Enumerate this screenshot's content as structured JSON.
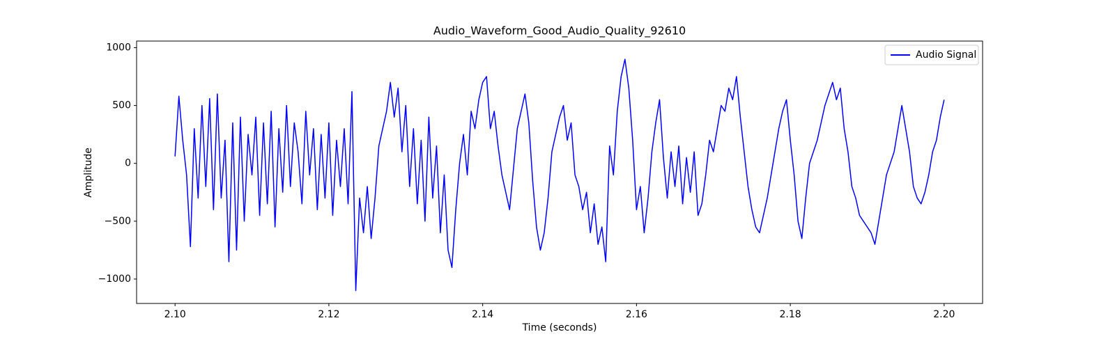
{
  "chart_data": {
    "type": "line",
    "title": "Audio_Waveform_Good_Audio_Quality_92610",
    "x_label": "Time (seconds)",
    "y_label": "Amplitude",
    "legend": "upper right",
    "x": [
      2.1,
      2.1005,
      2.101,
      2.1015,
      2.102,
      2.1025,
      2.103,
      2.1035,
      2.104,
      2.1045,
      2.105,
      2.1055,
      2.106,
      2.1065,
      2.107,
      2.1075,
      2.108,
      2.1085,
      2.109,
      2.1095,
      2.11,
      2.1105,
      2.111,
      2.1115,
      2.112,
      2.1125,
      2.113,
      2.1135,
      2.114,
      2.1145,
      2.115,
      2.1155,
      2.116,
      2.1165,
      2.117,
      2.1175,
      2.118,
      2.1185,
      2.119,
      2.1195,
      2.12,
      2.1205,
      2.121,
      2.1215,
      2.122,
      2.1225,
      2.123,
      2.1235,
      2.124,
      2.1245,
      2.125,
      2.1255,
      2.126,
      2.1265,
      2.127,
      2.1275,
      2.128,
      2.1285,
      2.129,
      2.1295,
      2.13,
      2.1305,
      2.131,
      2.1315,
      2.132,
      2.1325,
      2.133,
      2.1335,
      2.134,
      2.1345,
      2.135,
      2.1355,
      2.136,
      2.1365,
      2.137,
      2.1375,
      2.138,
      2.1385,
      2.139,
      2.1395,
      2.14,
      2.1405,
      2.141,
      2.1415,
      2.142,
      2.1425,
      2.143,
      2.1435,
      2.144,
      2.1445,
      2.145,
      2.1455,
      2.146,
      2.1465,
      2.147,
      2.1475,
      2.148,
      2.1485,
      2.149,
      2.1495,
      2.15,
      2.1505,
      2.151,
      2.1515,
      2.152,
      2.1525,
      2.153,
      2.1535,
      2.154,
      2.1545,
      2.155,
      2.1555,
      2.156,
      2.1565,
      2.157,
      2.1575,
      2.158,
      2.1585,
      2.159,
      2.1595,
      2.16,
      2.1605,
      2.161,
      2.1615,
      2.162,
      2.1625,
      2.163,
      2.1635,
      2.164,
      2.1645,
      2.165,
      2.1655,
      2.166,
      2.1665,
      2.167,
      2.1675,
      2.168,
      2.1685,
      2.169,
      2.1695,
      2.17,
      2.1705,
      2.171,
      2.1715,
      2.172,
      2.1725,
      2.173,
      2.1735,
      2.174,
      2.1745,
      2.175,
      2.1755,
      2.176,
      2.1765,
      2.177,
      2.1775,
      2.178,
      2.1785,
      2.179,
      2.1795,
      2.18,
      2.1805,
      2.181,
      2.1815,
      2.182,
      2.1825,
      2.183,
      2.1835,
      2.184,
      2.1845,
      2.185,
      2.1855,
      2.186,
      2.1865,
      2.187,
      2.1875,
      2.188,
      2.1885,
      2.189,
      2.1895,
      2.19,
      2.1905,
      2.191,
      2.1915,
      2.192,
      2.1925,
      2.193,
      2.1935,
      2.194,
      2.1945,
      2.195,
      2.1955,
      2.196,
      2.1965,
      2.197,
      2.1975,
      2.198,
      2.1985,
      2.199,
      2.1995,
      2.2
    ],
    "series": [
      {
        "name": "Audio Signal",
        "color": "#0000ff",
        "values": [
          60,
          580,
          200,
          -100,
          -720,
          300,
          -300,
          500,
          -200,
          560,
          -400,
          600,
          -300,
          200,
          -850,
          350,
          -750,
          400,
          -500,
          250,
          -100,
          400,
          -450,
          350,
          -350,
          450,
          -550,
          300,
          -250,
          500,
          -200,
          350,
          100,
          -350,
          450,
          -100,
          300,
          -400,
          250,
          -300,
          350,
          -450,
          200,
          -200,
          300,
          -350,
          620,
          -1100,
          -300,
          -600,
          -200,
          -650,
          -300,
          150,
          300,
          450,
          700,
          400,
          650,
          100,
          500,
          -200,
          300,
          -350,
          200,
          -500,
          400,
          -300,
          150,
          -600,
          -100,
          -750,
          -900,
          -400,
          0,
          250,
          -100,
          450,
          300,
          550,
          700,
          750,
          300,
          450,
          150,
          -100,
          -250,
          -400,
          -50,
          300,
          450,
          600,
          350,
          -150,
          -550,
          -750,
          -600,
          -300,
          100,
          250,
          400,
          500,
          200,
          350,
          -100,
          -200,
          -400,
          -250,
          -600,
          -350,
          -700,
          -550,
          -850,
          150,
          -100,
          450,
          750,
          900,
          650,
          200,
          -400,
          -200,
          -600,
          -300,
          100,
          350,
          550,
          50,
          -300,
          100,
          -200,
          150,
          -350,
          50,
          -250,
          100,
          -450,
          -350,
          -100,
          200,
          100,
          300,
          500,
          450,
          650,
          550,
          750,
          400,
          100,
          -200,
          -400,
          -550,
          -600,
          -450,
          -300,
          -100,
          100,
          300,
          450,
          550,
          200,
          -100,
          -500,
          -650,
          -300,
          0,
          100,
          200,
          350,
          500,
          600,
          700,
          550,
          650,
          300,
          100,
          -200,
          -300,
          -450,
          -500,
          -550,
          -600,
          -700,
          -500,
          -300,
          -100,
          0,
          100,
          300,
          500,
          300,
          100,
          -200,
          -300,
          -350,
          -250,
          -100,
          100,
          200,
          400,
          550
        ]
      }
    ],
    "xlim": [
      2.095,
      2.205
    ],
    "xticks": [
      {
        "value": 2.1,
        "label": "2.10"
      },
      {
        "value": 2.12,
        "label": "2.12"
      },
      {
        "value": 2.14,
        "label": "2.14"
      },
      {
        "value": 2.16,
        "label": "2.16"
      },
      {
        "value": 2.18,
        "label": "2.18"
      },
      {
        "value": 2.2,
        "label": "2.20"
      }
    ],
    "ylim": [
      -1211,
      1057
    ],
    "yticks": [
      {
        "value": -1000,
        "label": "−1000"
      },
      {
        "value": -500,
        "label": "−500"
      },
      0,
      500,
      1000
    ],
    "grid": false
  }
}
